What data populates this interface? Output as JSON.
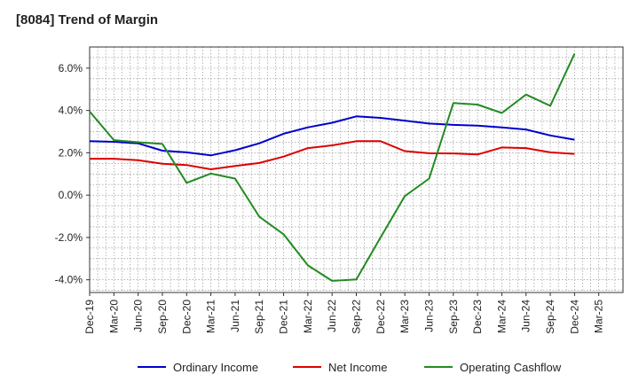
{
  "chart_data": {
    "type": "line",
    "title": "[8084]  Trend of Margin",
    "xlabel": "",
    "ylabel": "",
    "x_tick_labels": [
      "Dec-19",
      "Mar-20",
      "Jun-20",
      "Sep-20",
      "Dec-20",
      "Mar-21",
      "Jun-21",
      "Sep-21",
      "Dec-21",
      "Mar-22",
      "Jun-22",
      "Sep-22",
      "Dec-22",
      "Mar-23",
      "Jun-23",
      "Sep-23",
      "Dec-23",
      "Mar-24",
      "Jun-24",
      "Sep-24",
      "Dec-24",
      "Mar-25"
    ],
    "y_tick_labels": [
      "6.0%",
      "4.0%",
      "2.0%",
      "0.0%",
      "-2.0%",
      "-4.0%"
    ],
    "y_ticks": [
      6,
      4,
      2,
      0,
      -2,
      -4
    ],
    "ylim": [
      -4.6,
      7.0
    ],
    "grid": true,
    "legend_position": "bottom",
    "x": [
      "Dec-19",
      "Mar-20",
      "Jun-20",
      "Sep-20",
      "Dec-20",
      "Mar-21",
      "Jun-21",
      "Sep-21",
      "Dec-21",
      "Mar-22",
      "Jun-22",
      "Sep-22",
      "Dec-22",
      "Mar-23",
      "Jun-23",
      "Sep-23",
      "Dec-23",
      "Mar-24",
      "Jun-24",
      "Sep-24",
      "Dec-24"
    ],
    "series": [
      {
        "name": "Ordinary Income",
        "color": "#0000cc",
        "values": [
          2.55,
          2.52,
          2.45,
          2.1,
          2.02,
          1.88,
          2.12,
          2.45,
          2.9,
          3.2,
          3.42,
          3.72,
          3.65,
          3.52,
          3.38,
          3.32,
          3.28,
          3.2,
          3.1,
          2.82,
          2.62
        ]
      },
      {
        "name": "Net Income",
        "color": "#dd0000",
        "values": [
          1.72,
          1.72,
          1.65,
          1.48,
          1.42,
          1.22,
          1.38,
          1.52,
          1.82,
          2.22,
          2.35,
          2.55,
          2.55,
          2.08,
          1.98,
          1.97,
          1.92,
          2.25,
          2.22,
          2.02,
          1.95
        ]
      },
      {
        "name": "Operating Cashflow",
        "color": "#228b22",
        "values": [
          3.95,
          2.6,
          2.5,
          2.42,
          0.58,
          1.02,
          0.78,
          -1.02,
          -1.85,
          -3.32,
          -4.05,
          -3.98,
          -2.0,
          -0.05,
          0.78,
          4.35,
          4.28,
          3.88,
          4.75,
          4.22,
          6.68
        ]
      }
    ]
  }
}
